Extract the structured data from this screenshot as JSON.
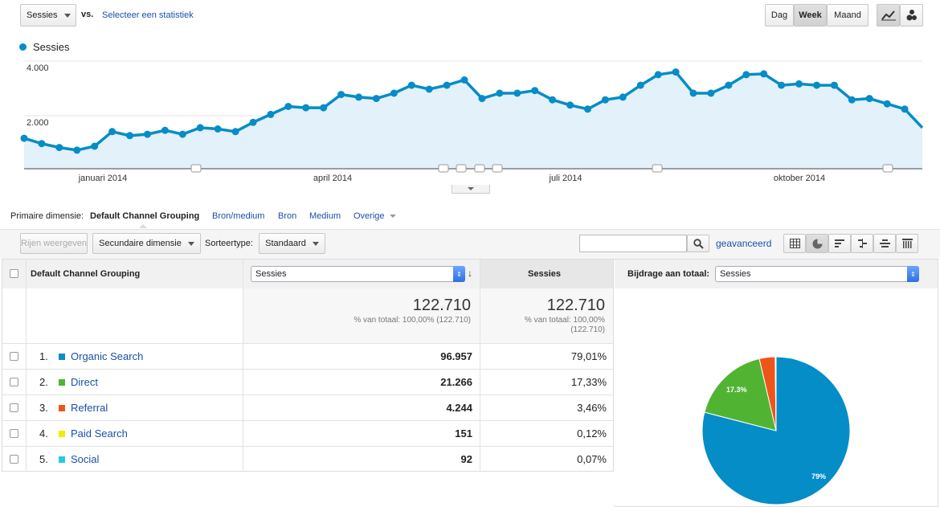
{
  "top_bar": {
    "metric_select": "Sessies",
    "vs_label": "vs.",
    "compare_link": "Selecteer een statistiek",
    "period_buttons": [
      "Dag",
      "Week",
      "Maand"
    ],
    "active_period": "Week",
    "chart_type_icons": [
      "line-chart-icon",
      "motion-chart-icon"
    ]
  },
  "chart": {
    "legend": "Sessies",
    "color": "#058dc7",
    "fill": "#e3f1fa",
    "y_ticks": [
      "4.000",
      "2.000"
    ],
    "x_labels": [
      "januari 2014",
      "april 2014",
      "juli 2014",
      "oktober 2014"
    ]
  },
  "chart_data": {
    "type": "area",
    "series": [
      {
        "name": "Sessies",
        "values": [
          1150,
          950,
          800,
          700,
          850,
          1400,
          1250,
          1300,
          1450,
          1300,
          1550,
          1500,
          1400,
          1750,
          2050,
          2350,
          2300,
          2300,
          2800,
          2700,
          2650,
          2850,
          3150,
          3000,
          3150,
          3350,
          2650,
          2850,
          2850,
          2950,
          2600,
          2400,
          2250,
          2600,
          2700,
          3150,
          3550,
          3650,
          2850,
          2850,
          3150,
          3550,
          3580,
          3150,
          3200,
          3150,
          3150,
          2600,
          2650,
          2450,
          2250,
          1550
        ]
      }
    ],
    "ylim": [
      0,
      4500
    ],
    "y_ticks": [
      2000,
      4000
    ],
    "annotation_markers": 9
  },
  "dimension_bar": {
    "label": "Primaire dimensie:",
    "active": "Default Channel Grouping",
    "options": [
      "Bron/medium",
      "Bron",
      "Medium",
      "Overige"
    ]
  },
  "toolbar": {
    "rows_button": "Rijen weergeven",
    "secondary_dimension": "Secundaire dimensie",
    "sort_label": "Sorteertype:",
    "sort_value": "Standaard",
    "search_placeholder": "",
    "advanced_link": "geavanceerd",
    "view_icons": [
      "table-view-icon",
      "pie-view-icon",
      "bar-view-icon",
      "comparison-view-icon",
      "term-cloud-icon",
      "pivot-view-icon"
    ]
  },
  "table": {
    "dim_header": "Default Channel Grouping",
    "metric_select": "Sessies",
    "metric_header": "Sessies",
    "contribution_label": "Bijdrage aan totaal:",
    "contribution_select": "Sessies",
    "total_value": "122.710",
    "total_sub": "% van totaal: 100,00% (122.710)",
    "total_sub_2_line1": "% van totaal: 100,00%",
    "total_sub_2_line2": "(122.710)",
    "rows": [
      {
        "idx": "1.",
        "name": "Organic Search",
        "color": "#058dc7",
        "value": "96.957",
        "pct": "79,01%"
      },
      {
        "idx": "2.",
        "name": "Direct",
        "color": "#50b432",
        "value": "21.266",
        "pct": "17,33%"
      },
      {
        "idx": "3.",
        "name": "Referral",
        "color": "#ed561b",
        "value": "4.244",
        "pct": "3,46%"
      },
      {
        "idx": "4.",
        "name": "Paid Search",
        "color": "#edef00",
        "value": "151",
        "pct": "0,12%"
      },
      {
        "idx": "5.",
        "name": "Social",
        "color": "#24cbe5",
        "value": "92",
        "pct": "0,07%"
      }
    ]
  },
  "pie": {
    "label_organic": "79%",
    "label_direct": "17.3%",
    "slices": [
      {
        "name": "Organic Search",
        "pct": 79.01,
        "color": "#058dc7"
      },
      {
        "name": "Direct",
        "pct": 17.33,
        "color": "#50b432"
      },
      {
        "name": "Referral",
        "pct": 3.46,
        "color": "#ed561b"
      },
      {
        "name": "Paid Search",
        "pct": 0.12,
        "color": "#edef00"
      },
      {
        "name": "Social",
        "pct": 0.07,
        "color": "#24cbe5"
      }
    ]
  }
}
